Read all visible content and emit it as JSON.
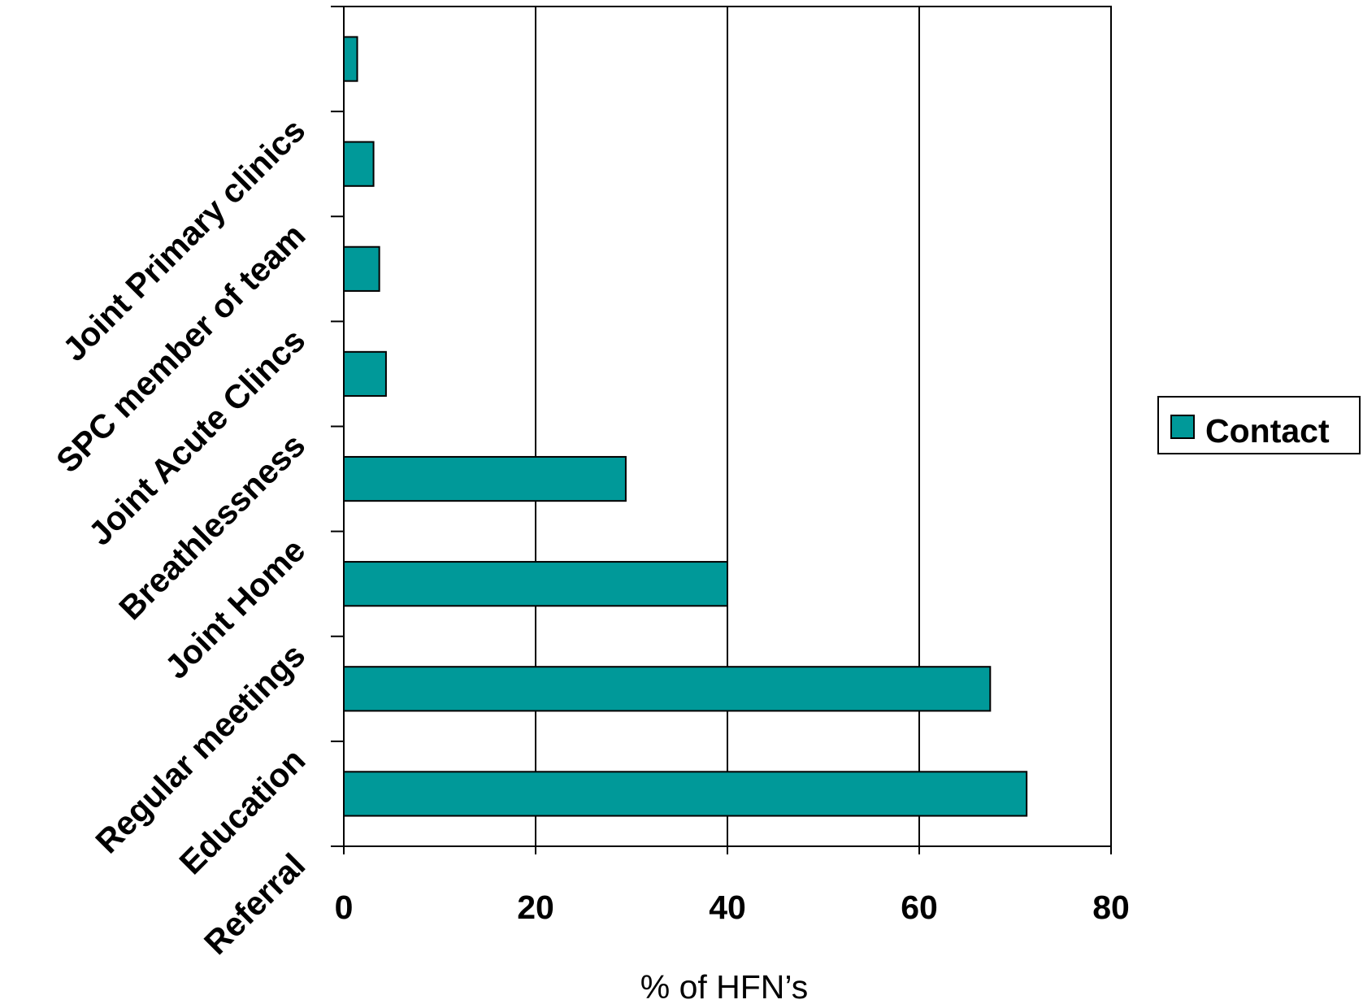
{
  "chart_data": {
    "type": "bar",
    "orientation": "horizontal",
    "categories": [
      "Referral",
      "Education",
      "Regular meetings",
      "Joint Home",
      "Breathlessness",
      "Joint Acute Clincs",
      "SPC member of team",
      "Joint Primary clinics"
    ],
    "series": [
      {
        "name": "Contact",
        "values": [
          71.2,
          67.4,
          40.0,
          29.4,
          4.4,
          3.7,
          3.1,
          1.4
        ]
      }
    ],
    "xlabel": "% of HFN’s",
    "ylabel": "",
    "xlim": [
      0,
      80
    ],
    "xticks": [
      "0",
      "20",
      "40",
      "60",
      "80"
    ],
    "grid": "vertical major gridlines",
    "legend_position": "right",
    "bar_color": "#009999"
  }
}
